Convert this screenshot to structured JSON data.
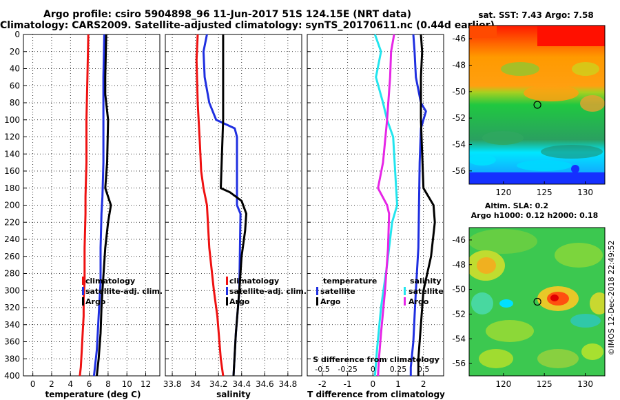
{
  "title_line1": "Argo profile: csiro 5904898_96 11-Jun-2017 51S 124.15E (NRT data)",
  "title_line2": "Climatology: CARS2009. Satellite-adjusted climatology: synTS_20170611.nc (0.44d earlier)",
  "colors": {
    "climatology": "#ee1111",
    "satellite": "#1f2fe0",
    "argo": "#000000",
    "sat_salinity": "#22e5ee",
    "clim_salinity": "#e625e6"
  },
  "chart_data": [
    {
      "type": "line",
      "name": "temperature-profile",
      "xlabel": "temperature (deg C)",
      "ylabel": "",
      "xlim": [
        -1,
        13.5
      ],
      "ylim": [
        400,
        0
      ],
      "xticks": [
        "0",
        "2",
        "4",
        "6",
        "8",
        "10",
        "12"
      ],
      "yticks": [
        "0",
        "20",
        "40",
        "60",
        "80",
        "100",
        "120",
        "140",
        "160",
        "180",
        "200",
        "220",
        "240",
        "260",
        "280",
        "300",
        "320",
        "340",
        "360",
        "380",
        "400"
      ],
      "grid": true,
      "legend_position": "lower-right",
      "legend": [
        "climatology",
        "satellite-adj. clim.",
        "Argo"
      ],
      "series": [
        {
          "name": "climatology",
          "color": "#ee1111",
          "x": [
            5.9,
            5.8,
            5.7,
            5.7,
            5.6,
            5.6,
            5.5,
            5.5,
            5.4,
            5.4,
            5.3,
            5.2,
            5.1,
            5.0
          ],
          "y": [
            0,
            50,
            100,
            150,
            190,
            210,
            250,
            290,
            310,
            330,
            350,
            370,
            390,
            400
          ]
        },
        {
          "name": "satellite-adj. clim.",
          "color": "#1f2fe0",
          "x": [
            7.6,
            7.5,
            7.5,
            7.5,
            7.4,
            7.3,
            7.2,
            7.2,
            7.1,
            7.0,
            6.9,
            6.8,
            6.6,
            6.5
          ],
          "y": [
            0,
            50,
            100,
            150,
            190,
            210,
            250,
            290,
            310,
            330,
            350,
            370,
            390,
            400
          ]
        },
        {
          "name": "Argo",
          "color": "#000000",
          "x": [
            7.8,
            7.7,
            7.7,
            8.0,
            7.9,
            7.7,
            8.3,
            8.0,
            7.7,
            7.4,
            7.3,
            7.2,
            7.0,
            6.8
          ],
          "y": [
            0,
            50,
            70,
            100,
            150,
            180,
            200,
            220,
            250,
            300,
            320,
            350,
            380,
            400
          ]
        }
      ]
    },
    {
      "type": "line",
      "name": "salinity-profile",
      "xlabel": "salinity",
      "ylabel": "",
      "xlim": [
        33.74,
        34.92
      ],
      "ylim": [
        400,
        0
      ],
      "xticks": [
        "33.8",
        "34",
        "34.2",
        "34.4",
        "34.6",
        "34.8"
      ],
      "grid": true,
      "legend_position": "lower-right",
      "legend": [
        "climatology",
        "satellite-adj. clim.",
        "Argo"
      ],
      "series": [
        {
          "name": "climatology",
          "color": "#ee1111",
          "x": [
            34.02,
            34.01,
            34.02,
            34.04,
            34.05,
            34.07,
            34.1,
            34.12,
            34.16,
            34.19,
            34.22,
            34.24
          ],
          "y": [
            0,
            30,
            80,
            130,
            160,
            180,
            200,
            250,
            300,
            330,
            380,
            400
          ]
        },
        {
          "name": "satellite-adj. clim.",
          "color": "#1f2fe0",
          "x": [
            34.1,
            34.07,
            34.08,
            34.12,
            34.18,
            34.34,
            34.36,
            34.36,
            34.39,
            34.38,
            34.35,
            34.33
          ],
          "y": [
            0,
            20,
            50,
            80,
            100,
            110,
            120,
            200,
            210,
            300,
            350,
            400
          ]
        },
        {
          "name": "Argo",
          "color": "#000000",
          "x": [
            34.24,
            34.24,
            34.24,
            34.22,
            34.3,
            34.4,
            34.44,
            34.43,
            34.4,
            34.38,
            34.35,
            34.33
          ],
          "y": [
            0,
            50,
            100,
            180,
            185,
            195,
            210,
            230,
            260,
            300,
            350,
            400
          ]
        }
      ]
    },
    {
      "type": "line",
      "name": "difference-profile",
      "xlabel": "T difference from climatology",
      "x2label": "S difference from climatology",
      "ylabel": "",
      "xlim": [
        -2.6,
        2.8
      ],
      "x2lim": [
        -0.65,
        0.7
      ],
      "ylim": [
        400,
        0
      ],
      "xticks": [
        "-2",
        "-1",
        "0",
        "1",
        "2"
      ],
      "x2ticks": [
        "-0.5",
        "-0.25",
        "0",
        "0.25",
        "0.5"
      ],
      "grid": true,
      "legend_temperature_title": "temperature",
      "legend_salinity_title": "salinity",
      "legend_temperature": [
        "satellite",
        "Argo"
      ],
      "legend_salinity": [
        "satellite",
        "Argo"
      ],
      "series": [
        {
          "name": "temperature satellite",
          "color": "#1f2fe0",
          "x": [
            1.6,
            1.65,
            1.7,
            1.9,
            2.1,
            1.9,
            1.85,
            1.8,
            1.7,
            1.65,
            1.6,
            1.5,
            1.5
          ],
          "y": [
            0,
            20,
            50,
            80,
            90,
            110,
            150,
            250,
            300,
            330,
            360,
            390,
            400
          ]
        },
        {
          "name": "temperature Argo",
          "color": "#000000",
          "x": [
            1.9,
            1.95,
            1.9,
            1.9,
            2.0,
            2.4,
            2.45,
            2.3,
            2.0,
            1.9,
            1.8,
            1.8
          ],
          "y": [
            0,
            20,
            50,
            100,
            180,
            200,
            220,
            260,
            300,
            340,
            380,
            400
          ]
        },
        {
          "name": "salinity satellite",
          "color": "#22e5ee",
          "x": [
            0.02,
            0.08,
            0.03,
            0.1,
            0.14,
            0.2,
            0.24,
            0.19,
            0.14,
            0.08,
            0.04,
            0.02
          ],
          "y": [
            0,
            20,
            50,
            80,
            100,
            120,
            200,
            220,
            270,
            320,
            370,
            400
          ]
        },
        {
          "name": "salinity Argo",
          "color": "#e625e6",
          "x": [
            0.21,
            0.18,
            0.17,
            0.14,
            0.1,
            0.05,
            0.14,
            0.16,
            0.15,
            0.12,
            0.08,
            0.06,
            0.05
          ],
          "y": [
            0,
            20,
            50,
            100,
            150,
            180,
            200,
            210,
            250,
            300,
            350,
            380,
            400
          ]
        }
      ]
    },
    {
      "type": "heatmap",
      "name": "sst-map",
      "title": "sat. SST: 7.43 Argo: 7.58",
      "xticks": [
        "120",
        "125",
        "130"
      ],
      "yticks": [
        "-46",
        "-48",
        "-50",
        "-52",
        "-54",
        "-56"
      ],
      "xlim": [
        115.8,
        132.4
      ],
      "ylim": [
        -57,
        -45
      ],
      "marker": {
        "lon": 124.15,
        "lat": -51
      }
    },
    {
      "type": "heatmap",
      "name": "sla-map",
      "title": "Altim. SLA: 0.2",
      "subtitle": "Argo h1000: 0.12 h2000: 0.18",
      "xticks": [
        "120",
        "125",
        "130"
      ],
      "yticks": [
        "-46",
        "-48",
        "-50",
        "-52",
        "-54",
        "-56"
      ],
      "xlim": [
        115.8,
        132.4
      ],
      "ylim": [
        -57,
        -45
      ],
      "marker": {
        "lon": 124.15,
        "lat": -51
      }
    }
  ],
  "credit": "©IMOS 12-Dec-2018 22:49:52"
}
